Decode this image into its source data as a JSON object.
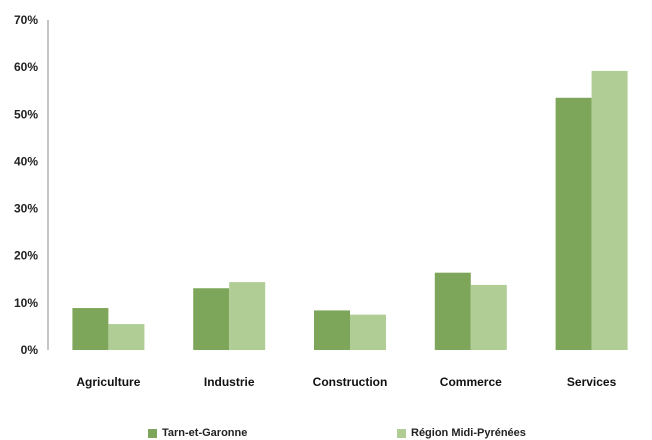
{
  "chart_data": {
    "type": "bar",
    "categories": [
      "Agriculture",
      "Industrie",
      "Construction",
      "Commerce",
      "Services"
    ],
    "series": [
      {
        "name": "Tarn-et-Garonne",
        "color": "#7ea65a",
        "values": [
          8.9,
          13.1,
          8.4,
          16.4,
          53.5
        ]
      },
      {
        "name": "Région Midi-Pyrénées",
        "color": "#b0cd95",
        "values": [
          5.5,
          14.4,
          7.5,
          13.8,
          59.2
        ]
      }
    ],
    "yticks": [
      "0%",
      "10%",
      "20%",
      "30%",
      "40%",
      "50%",
      "60%",
      "70%"
    ],
    "ylim": [
      0,
      70
    ],
    "grid": false,
    "legend": "bottom"
  }
}
